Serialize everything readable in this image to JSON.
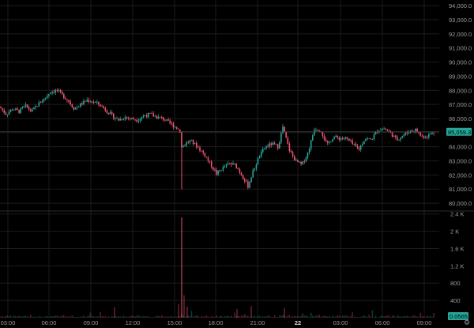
{
  "chart_data": {
    "type": "candlestick",
    "price_axis": {
      "ticks": [
        "94,000.0",
        "93,000.0",
        "92,000.0",
        "91,000.0",
        "90,000.0",
        "89,000.0",
        "88,000.0",
        "87,000.0",
        "86,000.0",
        "85,000.0",
        "84,000.0",
        "83,000.0",
        "82,000.0",
        "81,000.0",
        "80,000.0"
      ],
      "tick_values": [
        94000,
        93000,
        92000,
        91000,
        90000,
        89000,
        88000,
        87000,
        86000,
        85000,
        84000,
        83000,
        82000,
        81000,
        80000
      ],
      "range": [
        79500,
        94400
      ]
    },
    "volume_axis": {
      "ticks": [
        "2.4 K",
        "2 K",
        "1.6 K",
        "1.2 K",
        "800",
        "400"
      ],
      "tick_values": [
        2400,
        2000,
        1600,
        1200,
        800,
        400
      ],
      "range": [
        0,
        2450
      ]
    },
    "time_axis": {
      "labels": [
        {
          "text": "03:00",
          "bold": false
        },
        {
          "text": "06:00",
          "bold": false
        },
        {
          "text": "09:00",
          "bold": false
        },
        {
          "text": "12:00",
          "bold": false
        },
        {
          "text": "15:00",
          "bold": false
        },
        {
          "text": "18:00",
          "bold": false
        },
        {
          "text": "21:00",
          "bold": false
        },
        {
          "text": "22",
          "bold": true
        },
        {
          "text": "03:00",
          "bold": false
        },
        {
          "text": "06:00",
          "bold": false
        },
        {
          "text": "09:00",
          "bold": false
        }
      ]
    },
    "last_price": {
      "value": 85059.3,
      "label": "85,059.3"
    },
    "last_volume": {
      "value": 0.0565,
      "label": "0.0565"
    },
    "price_path_anchors": [
      [
        0,
        86800
      ],
      [
        8,
        86300
      ],
      [
        16,
        86700
      ],
      [
        24,
        86500
      ],
      [
        32,
        86900
      ],
      [
        40,
        86500
      ],
      [
        48,
        87000
      ],
      [
        56,
        87400
      ],
      [
        64,
        87900
      ],
      [
        72,
        88000
      ],
      [
        78,
        87700
      ],
      [
        86,
        87300
      ],
      [
        94,
        86700
      ],
      [
        102,
        87000
      ],
      [
        110,
        87300
      ],
      [
        118,
        87200
      ],
      [
        126,
        87000
      ],
      [
        134,
        86600
      ],
      [
        142,
        86200
      ],
      [
        150,
        85900
      ],
      [
        158,
        86100
      ],
      [
        166,
        86000
      ],
      [
        174,
        85900
      ],
      [
        182,
        86200
      ],
      [
        190,
        86300
      ],
      [
        198,
        86100
      ],
      [
        206,
        86000
      ],
      [
        214,
        85700
      ],
      [
        222,
        85400
      ],
      [
        228,
        85100
      ],
      [
        230,
        83900
      ],
      [
        236,
        84300
      ],
      [
        242,
        84400
      ],
      [
        250,
        84000
      ],
      [
        258,
        83500
      ],
      [
        266,
        82800
      ],
      [
        274,
        82100
      ],
      [
        282,
        82500
      ],
      [
        290,
        82800
      ],
      [
        298,
        82700
      ],
      [
        306,
        82000
      ],
      [
        314,
        81200
      ],
      [
        320,
        82200
      ],
      [
        328,
        83300
      ],
      [
        336,
        84000
      ],
      [
        344,
        84200
      ],
      [
        352,
        84000
      ],
      [
        358,
        85400
      ],
      [
        366,
        83800
      ],
      [
        374,
        83000
      ],
      [
        382,
        82700
      ],
      [
        390,
        83600
      ],
      [
        398,
        85300
      ],
      [
        406,
        85200
      ],
      [
        414,
        84100
      ],
      [
        422,
        84700
      ],
      [
        430,
        84600
      ],
      [
        438,
        84600
      ],
      [
        446,
        84200
      ],
      [
        454,
        83800
      ],
      [
        462,
        84600
      ],
      [
        470,
        84500
      ],
      [
        478,
        85200
      ],
      [
        486,
        85300
      ],
      [
        494,
        85000
      ],
      [
        502,
        84500
      ],
      [
        510,
        84800
      ],
      [
        518,
        85100
      ],
      [
        526,
        85200
      ],
      [
        534,
        84700
      ],
      [
        542,
        84800
      ],
      [
        550,
        85050
      ]
    ],
    "spike_low": {
      "x": 230,
      "value": 81000
    },
    "volume_spike": {
      "x": 230,
      "value": 2320
    }
  },
  "colors": {
    "background": "#000000",
    "up": "#26a69a",
    "down": "#ef5370",
    "grid": "#1c1c1c",
    "axis_text": "#9a9a9a",
    "price_badge": "#26a69a",
    "volume_badge": "#26a69a",
    "crosshair": "#444444"
  },
  "settings_icon": "gear-icon"
}
